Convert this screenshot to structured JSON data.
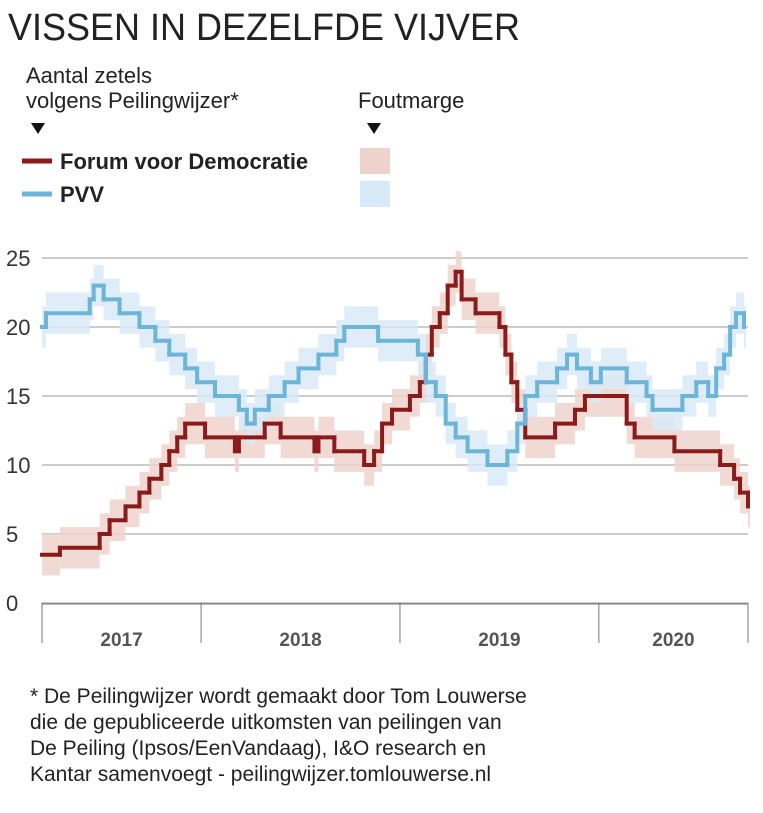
{
  "chart_data": {
    "type": "line",
    "step": true,
    "title": "VISSEN IN DEZELFDE VIJVER",
    "subtitle": [
      "Aantal zetels",
      "volgens Peilingwijzer*"
    ],
    "error_label": "Foutmarge",
    "note": [
      "* De Peilingwijzer wordt gemaakt door Tom Louwerse",
      "die de gepubliceerde uitkomsten van peilingen van",
      "De Peiling (Ipsos/EenVandaag), I&O research en",
      "Kantar samenvoegt - peilingwijzer.tomlouwerse.nl"
    ],
    "xlim": [
      2017.2,
      2020.75
    ],
    "xticks": [
      2017,
      2018,
      2019,
      2020
    ],
    "ylim": [
      0,
      25
    ],
    "yticks": [
      0,
      5,
      10,
      15,
      20,
      25
    ],
    "grid": true,
    "series": [
      {
        "name": "Forum voor Democratie",
        "color": "#8b1a1a",
        "error_color": "#eed3cd",
        "error": 1.5,
        "x": [
          2017.2,
          2017.29,
          2017.49,
          2017.54,
          2017.62,
          2017.69,
          2017.74,
          2017.8,
          2017.84,
          2017.88,
          2017.92,
          2018.02,
          2018.17,
          2018.19,
          2018.32,
          2018.4,
          2018.57,
          2018.59,
          2018.67,
          2018.82,
          2018.87,
          2018.91,
          2018.96,
          2019.05,
          2019.1,
          2019.13,
          2019.16,
          2019.2,
          2019.24,
          2019.28,
          2019.31,
          2019.38,
          2019.5,
          2019.53,
          2019.56,
          2019.59,
          2019.63,
          2019.78,
          2019.88,
          2019.93,
          2020.14,
          2020.18,
          2020.38,
          2020.61,
          2020.68,
          2020.71,
          2020.75
        ],
        "values": [
          3.5,
          4,
          5,
          6,
          7,
          8,
          9,
          10,
          11,
          12,
          13,
          12,
          11,
          12,
          13,
          12,
          11,
          12,
          11,
          10,
          11,
          13,
          14,
          15,
          16,
          18,
          20,
          21,
          23,
          24,
          22,
          21,
          20,
          18,
          16,
          14,
          12,
          13,
          14,
          15,
          13,
          12,
          11,
          10,
          9,
          8,
          7
        ]
      },
      {
        "name": "PVV",
        "color": "#6cb5d9",
        "error_color": "#d8eaf7",
        "error": 1.5,
        "x": [
          2017.2,
          2017.22,
          2017.44,
          2017.46,
          2017.51,
          2017.59,
          2017.69,
          2017.77,
          2017.84,
          2017.92,
          2017.98,
          2018.07,
          2018.19,
          2018.23,
          2018.27,
          2018.34,
          2018.42,
          2018.49,
          2018.59,
          2018.68,
          2018.72,
          2018.89,
          2019.09,
          2019.13,
          2019.18,
          2019.23,
          2019.28,
          2019.34,
          2019.44,
          2019.54,
          2019.59,
          2019.63,
          2019.69,
          2019.79,
          2019.84,
          2019.89,
          2019.96,
          2020.01,
          2020.14,
          2020.24,
          2020.27,
          2020.42,
          2020.49,
          2020.55,
          2020.59,
          2020.63,
          2020.66,
          2020.69,
          2020.73
        ],
        "values": [
          20,
          21,
          22,
          23,
          22,
          21,
          20,
          19,
          18,
          17,
          16,
          15,
          14,
          13,
          14,
          15,
          16,
          17,
          18,
          19,
          20,
          19,
          18,
          16,
          15,
          13,
          12,
          11,
          10,
          11,
          13,
          15,
          16,
          17,
          18,
          17,
          16,
          17,
          16,
          15,
          14,
          15,
          16,
          15,
          17,
          18,
          20,
          21,
          20
        ]
      }
    ]
  }
}
